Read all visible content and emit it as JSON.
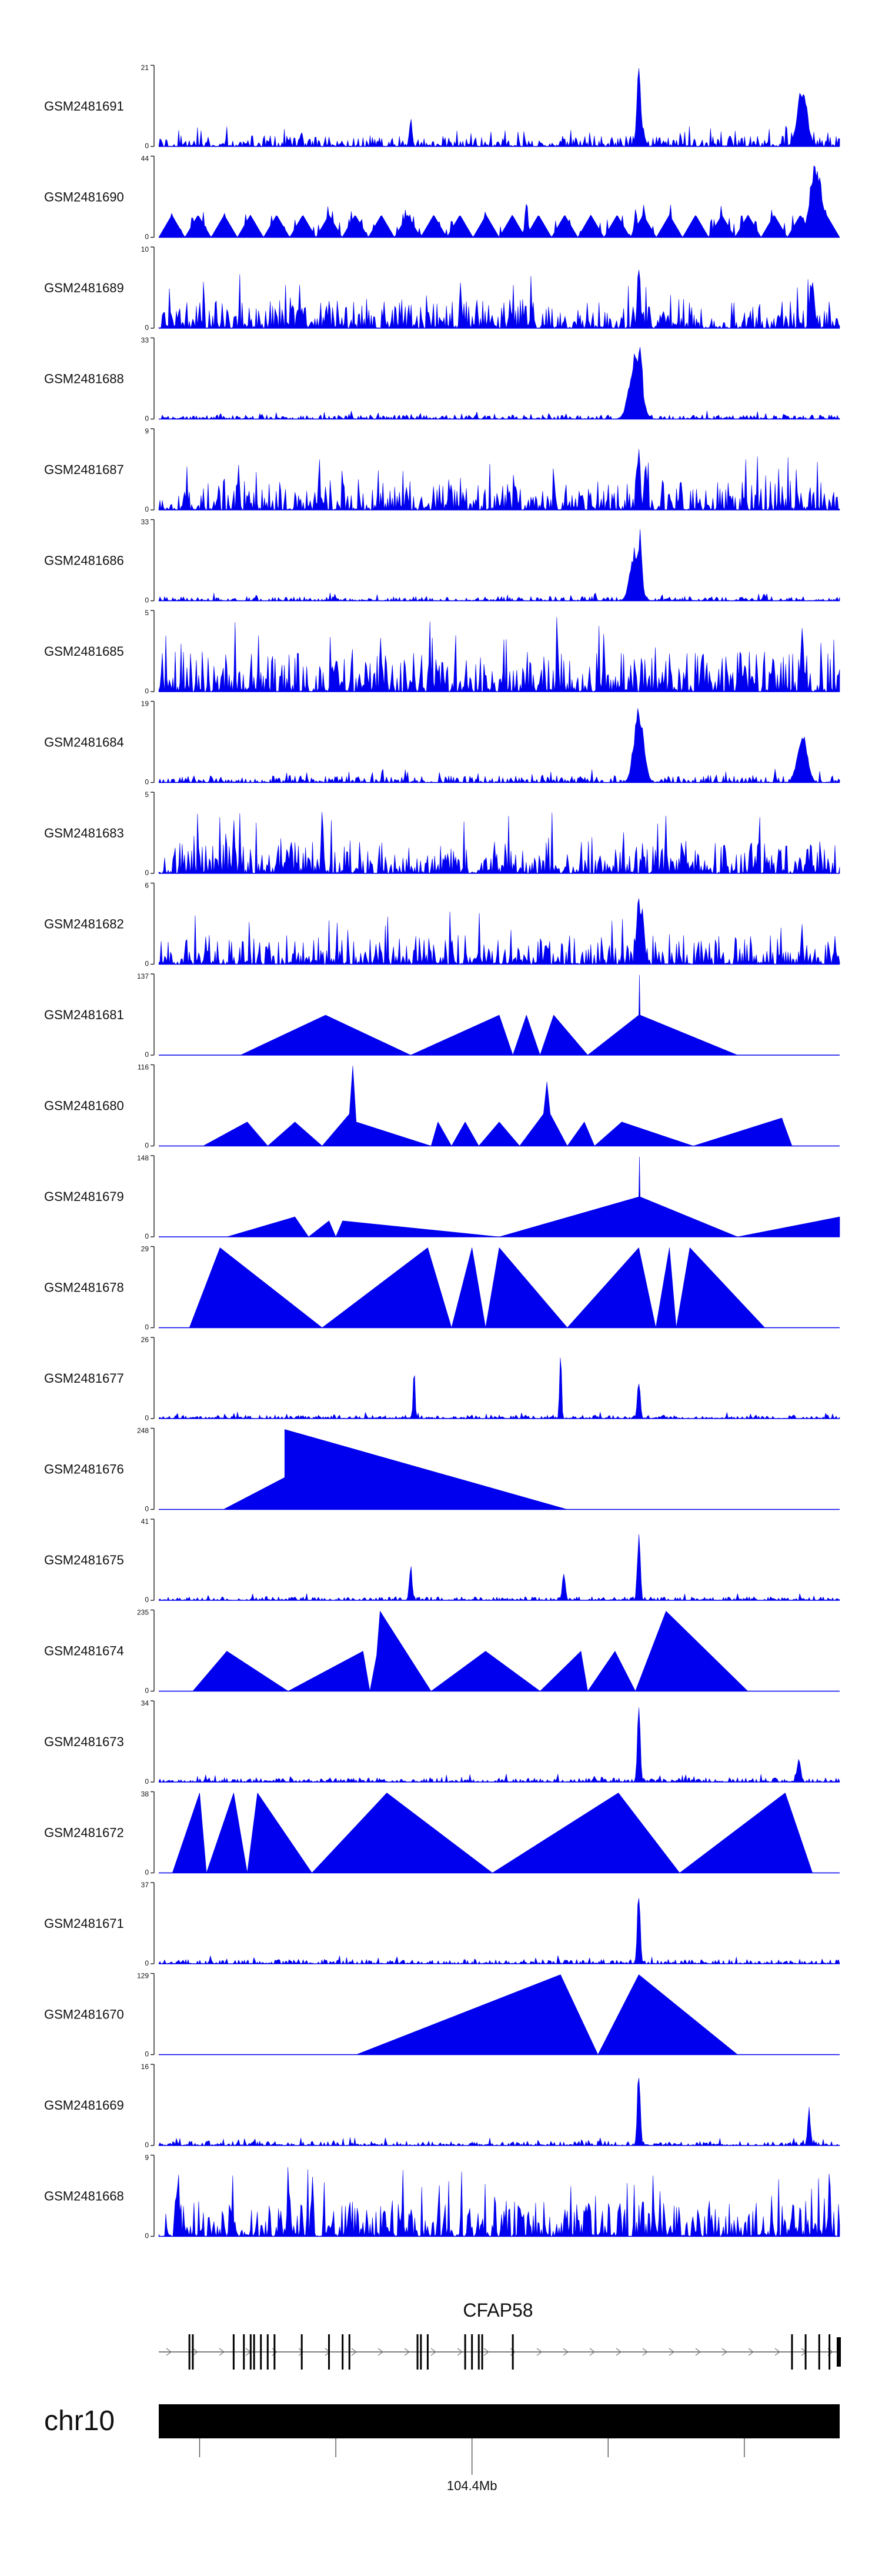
{
  "chart_data": {
    "type": "area",
    "title": "",
    "xlabel": "",
    "ylabel": "",
    "x_range": [
      104.1,
      104.71
    ],
    "tracks": [
      {
        "name": "GSM2481691",
        "ymax": 21,
        "ymin": 0,
        "style": "noise",
        "base": 0.15,
        "peaks": [
          [
            0.705,
            1.0,
            0.004
          ],
          [
            0.945,
            0.78,
            0.01
          ],
          [
            0.37,
            0.4,
            0.003
          ],
          [
            0.71,
            0.3,
            0.004
          ]
        ],
        "seed": 11
      },
      {
        "name": "GSM2481690",
        "ymax": 44,
        "ymin": 0,
        "style": "mixed",
        "base": 0.28,
        "peaks": [
          [
            0.54,
            0.5,
            0.003
          ],
          [
            0.965,
            1.0,
            0.012
          ],
          [
            0.7,
            0.35,
            0.003
          ]
        ],
        "seed": 23
      },
      {
        "name": "GSM2481689",
        "ymax": 10,
        "ymin": 0,
        "style": "noise",
        "base": 0.4,
        "peaks": [
          [
            0.705,
            0.9,
            0.003
          ],
          [
            0.96,
            0.7,
            0.004
          ]
        ],
        "seed": 37
      },
      {
        "name": "GSM2481688",
        "ymax": 33,
        "ymin": 0,
        "style": "noise",
        "base": 0.06,
        "peaks": [
          [
            0.7,
            0.85,
            0.012
          ],
          [
            0.707,
            0.95,
            0.005
          ]
        ],
        "seed": 41
      },
      {
        "name": "GSM2481687",
        "ymax": 9,
        "ymin": 0,
        "style": "noise",
        "base": 0.4,
        "peaks": [
          [
            0.705,
            0.9,
            0.003
          ],
          [
            0.715,
            0.7,
            0.003
          ]
        ],
        "seed": 53
      },
      {
        "name": "GSM2481686",
        "ymax": 33,
        "ymin": 0,
        "style": "noise",
        "base": 0.06,
        "peaks": [
          [
            0.7,
            0.7,
            0.01
          ],
          [
            0.707,
            0.95,
            0.004
          ]
        ],
        "seed": 61
      },
      {
        "name": "GSM2481685",
        "ymax": 5,
        "ymin": 0,
        "style": "noise",
        "base": 0.55,
        "peaks": [
          [
            0.945,
            1.0,
            0.003
          ]
        ],
        "seed": 71
      },
      {
        "name": "GSM2481684",
        "ymax": 19,
        "ymin": 0,
        "style": "noise",
        "base": 0.1,
        "peaks": [
          [
            0.705,
            1.0,
            0.01
          ],
          [
            0.945,
            0.65,
            0.01
          ]
        ],
        "seed": 83
      },
      {
        "name": "GSM2481683",
        "ymax": 5,
        "ymin": 0,
        "style": "noise",
        "base": 0.45,
        "peaks": [
          [
            0.24,
            1.0,
            0.002
          ],
          [
            0.11,
            0.75,
            0.002
          ]
        ],
        "seed": 97
      },
      {
        "name": "GSM2481682",
        "ymax": 6,
        "ymin": 0,
        "style": "noise",
        "base": 0.4,
        "peaks": [
          [
            0.705,
            0.95,
            0.004
          ],
          [
            0.71,
            0.8,
            0.004
          ]
        ],
        "seed": 101
      },
      {
        "name": "GSM2481681",
        "ymax": 137,
        "ymin": 0,
        "style": "poly",
        "points": [
          [
            0.12,
            0
          ],
          [
            0.245,
            0.5
          ],
          [
            0.37,
            0
          ],
          [
            0.5,
            0.5
          ],
          [
            0.52,
            0
          ],
          [
            0.54,
            0.5
          ],
          [
            0.56,
            0
          ],
          [
            0.58,
            0.5
          ],
          [
            0.63,
            0
          ],
          [
            0.705,
            0.5
          ],
          [
            0.706,
            1.0
          ],
          [
            0.707,
            0.5
          ],
          [
            0.85,
            0
          ]
        ]
      },
      {
        "name": "GSM2481680",
        "ymax": 116,
        "ymin": 0,
        "style": "poly",
        "points": [
          [
            0.065,
            0
          ],
          [
            0.13,
            0.3
          ],
          [
            0.16,
            0
          ],
          [
            0.2,
            0.3
          ],
          [
            0.24,
            0
          ],
          [
            0.28,
            0.4
          ],
          [
            0.285,
            1.0
          ],
          [
            0.29,
            0.3
          ],
          [
            0.4,
            0
          ],
          [
            0.41,
            0.3
          ],
          [
            0.43,
            0
          ],
          [
            0.45,
            0.3
          ],
          [
            0.47,
            0
          ],
          [
            0.5,
            0.3
          ],
          [
            0.53,
            0
          ],
          [
            0.565,
            0.4
          ],
          [
            0.57,
            0.8
          ],
          [
            0.575,
            0.4
          ],
          [
            0.6,
            0
          ],
          [
            0.625,
            0.3
          ],
          [
            0.64,
            0
          ],
          [
            0.68,
            0.3
          ],
          [
            0.785,
            0
          ],
          [
            0.915,
            0.35
          ],
          [
            0.93,
            0
          ],
          [
            0.96,
            0
          ]
        ]
      },
      {
        "name": "GSM2481679",
        "ymax": 148,
        "ymin": 0,
        "style": "poly",
        "points": [
          [
            0.1,
            0
          ],
          [
            0.2,
            0.25
          ],
          [
            0.22,
            0
          ],
          [
            0.25,
            0.2
          ],
          [
            0.26,
            0
          ],
          [
            0.27,
            0.2
          ],
          [
            0.5,
            0
          ],
          [
            0.705,
            0.5
          ],
          [
            0.706,
            1.0
          ],
          [
            0.707,
            0.5
          ],
          [
            0.85,
            0
          ],
          [
            1.0,
            0.25
          ],
          [
            1.0,
            0
          ]
        ]
      },
      {
        "name": "GSM2481678",
        "ymax": 29,
        "ymin": 0,
        "style": "poly",
        "points": [
          [
            0.045,
            0
          ],
          [
            0.09,
            1.0
          ],
          [
            0.24,
            0
          ],
          [
            0.395,
            1.0
          ],
          [
            0.43,
            0
          ],
          [
            0.46,
            1.0
          ],
          [
            0.48,
            0
          ],
          [
            0.5,
            1.0
          ],
          [
            0.6,
            0
          ],
          [
            0.705,
            1.0
          ],
          [
            0.73,
            0
          ],
          [
            0.75,
            1.0
          ],
          [
            0.76,
            0
          ],
          [
            0.78,
            1.0
          ],
          [
            0.89,
            0
          ]
        ]
      },
      {
        "name": "GSM2481677",
        "ymax": 26,
        "ymin": 0,
        "style": "noise",
        "base": 0.05,
        "peaks": [
          [
            0.375,
            0.65,
            0.002
          ],
          [
            0.59,
            1.0,
            0.002
          ],
          [
            0.705,
            0.5,
            0.003
          ]
        ],
        "seed": 131
      },
      {
        "name": "GSM2481676",
        "ymax": 248,
        "ymin": 0,
        "style": "poly",
        "points": [
          [
            0.095,
            0
          ],
          [
            0.185,
            0.4
          ],
          [
            0.185,
            1.0
          ],
          [
            0.6,
            0
          ]
        ]
      },
      {
        "name": "GSM2481675",
        "ymax": 41,
        "ymin": 0,
        "style": "noise",
        "base": 0.05,
        "peaks": [
          [
            0.705,
            0.95,
            0.003
          ],
          [
            0.37,
            0.45,
            0.003
          ],
          [
            0.595,
            0.4,
            0.003
          ]
        ],
        "seed": 149
      },
      {
        "name": "GSM2481674",
        "ymax": 235,
        "ymin": 0,
        "style": "poly",
        "points": [
          [
            0.05,
            0
          ],
          [
            0.1,
            0.5
          ],
          [
            0.19,
            0
          ],
          [
            0.3,
            0.5
          ],
          [
            0.31,
            0
          ],
          [
            0.32,
            0.45
          ],
          [
            0.325,
            1.0
          ],
          [
            0.4,
            0
          ],
          [
            0.48,
            0.5
          ],
          [
            0.56,
            0
          ],
          [
            0.62,
            0.5
          ],
          [
            0.63,
            0
          ],
          [
            0.67,
            0.5
          ],
          [
            0.7,
            0
          ],
          [
            0.745,
            1.0
          ],
          [
            0.865,
            0
          ]
        ]
      },
      {
        "name": "GSM2481673",
        "ymax": 34,
        "ymin": 0,
        "style": "noise",
        "base": 0.06,
        "peaks": [
          [
            0.705,
            1.0,
            0.003
          ],
          [
            0.94,
            0.3,
            0.004
          ]
        ],
        "seed": 167
      },
      {
        "name": "GSM2481672",
        "ymax": 38,
        "ymin": 0,
        "style": "poly",
        "points": [
          [
            0.02,
            0
          ],
          [
            0.06,
            1.0
          ],
          [
            0.07,
            0
          ],
          [
            0.11,
            1.0
          ],
          [
            0.13,
            0
          ],
          [
            0.145,
            1.0
          ],
          [
            0.225,
            0
          ],
          [
            0.335,
            1.0
          ],
          [
            0.49,
            0
          ],
          [
            0.675,
            1.0
          ],
          [
            0.765,
            0
          ],
          [
            0.92,
            1.0
          ],
          [
            0.96,
            0
          ]
        ]
      },
      {
        "name": "GSM2481671",
        "ymax": 37,
        "ymin": 0,
        "style": "noise",
        "base": 0.06,
        "peaks": [
          [
            0.705,
            1.0,
            0.003
          ]
        ],
        "seed": 181
      },
      {
        "name": "GSM2481670",
        "ymax": 129,
        "ymin": 0,
        "style": "poly",
        "points": [
          [
            0.29,
            0
          ],
          [
            0.59,
            1.0
          ],
          [
            0.645,
            0
          ],
          [
            0.705,
            1.0
          ],
          [
            0.85,
            0
          ]
        ]
      },
      {
        "name": "GSM2481669",
        "ymax": 16,
        "ymin": 0,
        "style": "noise",
        "base": 0.06,
        "peaks": [
          [
            0.705,
            1.0,
            0.003
          ],
          [
            0.955,
            0.5,
            0.003
          ]
        ],
        "seed": 193
      },
      {
        "name": "GSM2481668",
        "ymax": 9,
        "ymin": 0,
        "style": "noise",
        "base": 0.5,
        "peaks": [
          [
            0.19,
            1.0,
            0.002
          ],
          [
            0.985,
            0.95,
            0.002
          ]
        ],
        "seed": 199
      }
    ],
    "gene": {
      "name": "CFAP58",
      "exons": [
        0.045,
        0.05,
        0.11,
        0.125,
        0.135,
        0.14,
        0.15,
        0.16,
        0.17,
        0.21,
        0.25,
        0.27,
        0.28,
        0.38,
        0.385,
        0.395,
        0.45,
        0.46,
        0.47,
        0.475,
        0.52,
        0.93,
        0.95,
        0.97,
        0.985
      ],
      "strand": "+"
    },
    "chromosome": {
      "name": "chr10",
      "ticks": [
        0.06,
        0.26,
        0.46,
        0.66,
        0.86
      ],
      "labeled_tick_index": 2,
      "tick_label": "104.4Mb"
    }
  }
}
